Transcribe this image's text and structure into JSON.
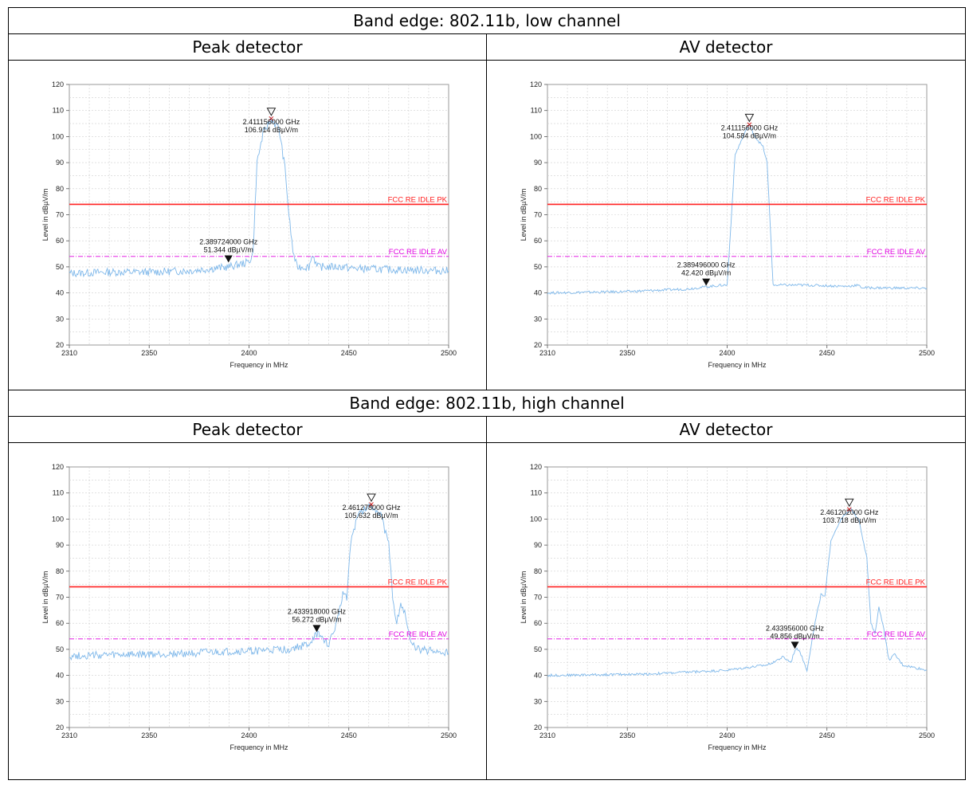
{
  "sections": [
    {
      "title": "Band edge: 802.11b, low channel",
      "left_header": "Peak detector",
      "right_header": "AV detector"
    },
    {
      "title": "Band edge: 802.11b, high channel",
      "left_header": "Peak detector",
      "right_header": "AV detector"
    }
  ],
  "chart_data": [
    {
      "type": "line",
      "panel": "low-peak",
      "xlabel": "Frequency in MHz",
      "ylabel": "Level in dBµV/m",
      "xlim": [
        2310,
        2500
      ],
      "ylim": [
        20,
        120
      ],
      "xticks": [
        2310,
        2350,
        2400,
        2450,
        2500
      ],
      "yticks": [
        20,
        30,
        40,
        50,
        60,
        70,
        80,
        90,
        100,
        110,
        120
      ],
      "grid": true,
      "limits": [
        {
          "name": "FCC RE IDLE PK",
          "value": 74,
          "color": "#ff2020",
          "style": "solid"
        },
        {
          "name": "FCC RE IDLE AV",
          "value": 54,
          "color": "#e000e0",
          "style": "dashdot"
        }
      ],
      "series": [
        {
          "color": "#7fb8ea",
          "points": [
            [
              2310,
              47.5
            ],
            [
              2330,
              48
            ],
            [
              2350,
              48
            ],
            [
              2370,
              48.5
            ],
            [
              2390,
              50
            ],
            [
              2398,
              51.5
            ],
            [
              2400,
              52
            ],
            [
              2402,
              55
            ],
            [
              2404,
              90
            ],
            [
              2407,
              101
            ],
            [
              2411,
              106.9
            ],
            [
              2415,
              103
            ],
            [
              2418,
              88
            ],
            [
              2420,
              70
            ],
            [
              2422,
              56
            ],
            [
              2424,
              50
            ],
            [
              2430,
              50
            ],
            [
              2432,
              55
            ],
            [
              2434,
              50
            ],
            [
              2448,
              50
            ],
            [
              2450,
              49.5
            ],
            [
              2470,
              49
            ],
            [
              2500,
              48.5
            ]
          ]
        }
      ],
      "markers": [
        {
          "x": 2411.156,
          "y": 106.914,
          "label1": "2.411156000 GHz",
          "label2": "106.914 dBµV/m",
          "style": "open"
        },
        {
          "x": 2389.724,
          "y": 51.344,
          "label1": "2.389724000 GHz",
          "label2": "51.344 dBµV/m",
          "style": "filled"
        }
      ],
      "noise": 3
    },
    {
      "type": "line",
      "panel": "low-av",
      "xlabel": "Frequency in MHz",
      "ylabel": "Level in dBµV/m",
      "xlim": [
        2310,
        2500
      ],
      "ylim": [
        20,
        120
      ],
      "xticks": [
        2310,
        2350,
        2400,
        2450,
        2500
      ],
      "yticks": [
        20,
        30,
        40,
        50,
        60,
        70,
        80,
        90,
        100,
        110,
        120
      ],
      "grid": true,
      "limits": [
        {
          "name": "FCC RE IDLE PK",
          "value": 74,
          "color": "#ff2020",
          "style": "solid"
        },
        {
          "name": "FCC RE IDLE AV",
          "value": 54,
          "color": "#e000e0",
          "style": "dashdot"
        }
      ],
      "series": [
        {
          "color": "#7fb8ea",
          "points": [
            [
              2310,
              40
            ],
            [
              2350,
              40.5
            ],
            [
              2380,
              41.5
            ],
            [
              2390,
              42.4
            ],
            [
              2398,
              43
            ],
            [
              2400,
              43
            ],
            [
              2401,
              55
            ],
            [
              2404,
              93
            ],
            [
              2408,
              100
            ],
            [
              2411,
              104.6
            ],
            [
              2414,
              100
            ],
            [
              2418,
              96
            ],
            [
              2420,
              90
            ],
            [
              2422,
              60
            ],
            [
              2423,
              43
            ],
            [
              2440,
              43
            ],
            [
              2460,
              42.5
            ],
            [
              2465,
              43
            ],
            [
              2468,
              42
            ],
            [
              2500,
              41.8
            ]
          ]
        }
      ],
      "markers": [
        {
          "x": 2411.156,
          "y": 104.584,
          "label1": "2.411156000 GHz",
          "label2": "104.584 dBµV/m",
          "style": "open"
        },
        {
          "x": 2389.496,
          "y": 42.42,
          "label1": "2.389496000 GHz",
          "label2": "42.420 dBµV/m",
          "style": "filled"
        }
      ],
      "noise": 1
    },
    {
      "type": "line",
      "panel": "high-peak",
      "xlabel": "Frequency in MHz",
      "ylabel": "Level in dBµV/m",
      "xlim": [
        2310,
        2500
      ],
      "ylim": [
        20,
        120
      ],
      "xticks": [
        2310,
        2350,
        2400,
        2450,
        2500
      ],
      "yticks": [
        20,
        30,
        40,
        50,
        60,
        70,
        80,
        90,
        100,
        110,
        120
      ],
      "grid": true,
      "limits": [
        {
          "name": "FCC RE IDLE PK",
          "value": 74,
          "color": "#ff2020",
          "style": "solid"
        },
        {
          "name": "FCC RE IDLE AV",
          "value": 54,
          "color": "#e000e0",
          "style": "dashdot"
        }
      ],
      "series": [
        {
          "color": "#7fb8ea",
          "points": [
            [
              2310,
              47.5
            ],
            [
              2350,
              48
            ],
            [
              2390,
              49
            ],
            [
              2420,
              50
            ],
            [
              2430,
              52
            ],
            [
              2434,
              56
            ],
            [
              2440,
              52
            ],
            [
              2444,
              60
            ],
            [
              2447,
              72
            ],
            [
              2449,
              70
            ],
            [
              2451,
              92
            ],
            [
              2455,
              102
            ],
            [
              2461,
              105.6
            ],
            [
              2466,
              102
            ],
            [
              2470,
              90
            ],
            [
              2472,
              70
            ],
            [
              2474,
              60
            ],
            [
              2476,
              68
            ],
            [
              2478,
              64
            ],
            [
              2481,
              52
            ],
            [
              2485,
              50
            ],
            [
              2500,
              48.5
            ]
          ]
        }
      ],
      "markers": [
        {
          "x": 2461.278,
          "y": 105.632,
          "label1": "2.461278000 GHz",
          "label2": "105.632 dBµV/m",
          "style": "open"
        },
        {
          "x": 2433.918,
          "y": 56.272,
          "label1": "2.433918000 GHz",
          "label2": "56.272 dBµV/m",
          "style": "filled"
        }
      ],
      "noise": 3
    },
    {
      "type": "line",
      "panel": "high-av",
      "xlabel": "Frequency in MHz",
      "ylabel": "Level in dBµV/m",
      "xlim": [
        2310,
        2500
      ],
      "ylim": [
        20,
        120
      ],
      "xticks": [
        2310,
        2350,
        2400,
        2450,
        2500
      ],
      "yticks": [
        20,
        30,
        40,
        50,
        60,
        70,
        80,
        90,
        100,
        110,
        120
      ],
      "grid": true,
      "limits": [
        {
          "name": "FCC RE IDLE PK",
          "value": 74,
          "color": "#ff2020",
          "style": "solid"
        },
        {
          "name": "FCC RE IDLE AV",
          "value": 54,
          "color": "#e000e0",
          "style": "dashdot"
        }
      ],
      "series": [
        {
          "color": "#7fb8ea",
          "points": [
            [
              2310,
              40
            ],
            [
              2360,
              40.5
            ],
            [
              2400,
              42
            ],
            [
              2420,
              44
            ],
            [
              2428,
              47
            ],
            [
              2432,
              45
            ],
            [
              2434,
              49.9
            ],
            [
              2436,
              50
            ],
            [
              2440,
              42
            ],
            [
              2444,
              60
            ],
            [
              2447,
              71
            ],
            [
              2449,
              70
            ],
            [
              2452,
              92
            ],
            [
              2457,
              100
            ],
            [
              2462,
              103.7
            ],
            [
              2466,
              100
            ],
            [
              2470,
              85
            ],
            [
              2472,
              60
            ],
            [
              2474,
              56
            ],
            [
              2476,
              66
            ],
            [
              2478,
              60
            ],
            [
              2481,
              46
            ],
            [
              2484,
              48
            ],
            [
              2488,
              44
            ],
            [
              2500,
              42
            ]
          ]
        }
      ],
      "markers": [
        {
          "x": 2461.202,
          "y": 103.718,
          "label1": "2.461202000 GHz",
          "label2": "103.718 dBµV/m",
          "style": "open"
        },
        {
          "x": 2433.956,
          "y": 49.856,
          "label1": "2.433956000 GHz",
          "label2": "49.856 dBµV/m",
          "style": "filled"
        }
      ],
      "noise": 1
    }
  ]
}
